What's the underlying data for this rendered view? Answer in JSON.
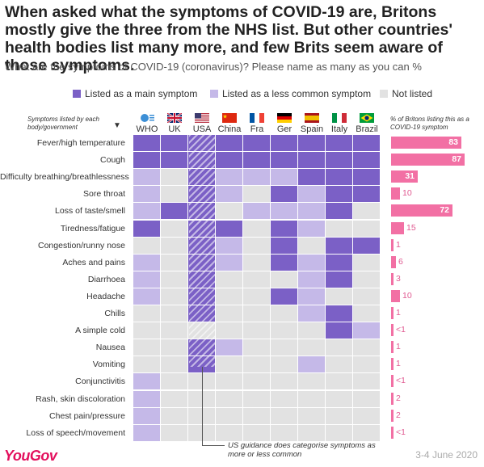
{
  "title": "When asked what the symptoms of COVID-19 are, Britons mostly give the three from the NHS list. But other countries' health bodies list many more, and few Brits seem aware of those symptoms.",
  "subtitle": "What are the symptoms of COVID-19 (coronavirus)? Please name as many as you can %",
  "legend": {
    "main": "Listed as a main symptom",
    "less": "Listed as a less common symptom",
    "none": "Not listed"
  },
  "colors": {
    "main": "#7b60c6",
    "less": "#c5b9e8",
    "none": "#e2e2e2",
    "bar": "#f270a4",
    "brand": "#e3105d"
  },
  "left_header": "Symptoms listed by each body/government",
  "right_header": "% of Britons listing this as a COVID-19 symptom",
  "who_logo_text": "World Health Organization",
  "annotation": "US guidance does categorise symptoms as more or less common",
  "brand": "YouGov",
  "date": "3-4 June 2020",
  "chart_data": {
    "type": "heatmap",
    "countries": [
      "WHO",
      "UK",
      "USA",
      "China",
      "Fra",
      "Ger",
      "Spain",
      "Italy",
      "Brazil"
    ],
    "flags": [
      "who-logo",
      "uk-flag",
      "usa-flag",
      "china-flag",
      "france-flag",
      "germany-flag",
      "spain-flag",
      "italy-flag",
      "brazil-flag"
    ],
    "symptoms": [
      "Fever/high temperature",
      "Cough",
      "Difficulty breathing/breathlessness",
      "Sore throat",
      "Loss of taste/smell",
      "Tiredness/fatigue",
      "Congestion/runny nose",
      "Aches and pains",
      "Diarrhoea",
      "Headache",
      "Chills",
      "A simple cold",
      "Nausea",
      "Vomiting",
      "Conjunctivitis",
      "Rash, skin discoloration",
      "Chest pain/pressure",
      "Loss of speech/movement"
    ],
    "status": [
      [
        "main",
        "main",
        "main",
        "main",
        "main",
        "main",
        "main",
        "main",
        "main"
      ],
      [
        "main",
        "main",
        "main",
        "main",
        "main",
        "main",
        "main",
        "main",
        "main"
      ],
      [
        "less",
        "none",
        "main",
        "less",
        "less",
        "less",
        "main",
        "main",
        "main"
      ],
      [
        "less",
        "none",
        "main",
        "less",
        "none",
        "main",
        "less",
        "main",
        "main"
      ],
      [
        "less",
        "main",
        "main",
        "none",
        "less",
        "less",
        "less",
        "main",
        "none"
      ],
      [
        "main",
        "none",
        "main",
        "main",
        "none",
        "main",
        "less",
        "none",
        "none"
      ],
      [
        "none",
        "none",
        "main",
        "less",
        "none",
        "main",
        "none",
        "main",
        "main"
      ],
      [
        "less",
        "none",
        "main",
        "less",
        "none",
        "main",
        "less",
        "main",
        "none"
      ],
      [
        "less",
        "none",
        "main",
        "none",
        "none",
        "none",
        "less",
        "main",
        "none"
      ],
      [
        "less",
        "none",
        "main",
        "none",
        "none",
        "main",
        "less",
        "none",
        "none"
      ],
      [
        "none",
        "none",
        "main",
        "none",
        "none",
        "none",
        "less",
        "main",
        "none"
      ],
      [
        "none",
        "none",
        "none",
        "none",
        "none",
        "none",
        "none",
        "main",
        "less"
      ],
      [
        "none",
        "none",
        "main",
        "less",
        "none",
        "none",
        "none",
        "none",
        "none"
      ],
      [
        "none",
        "none",
        "main",
        "none",
        "none",
        "none",
        "less",
        "none",
        "none"
      ],
      [
        "less",
        "none",
        "none",
        "none",
        "none",
        "none",
        "none",
        "none",
        "none"
      ],
      [
        "less",
        "none",
        "none",
        "none",
        "none",
        "none",
        "none",
        "none",
        "none"
      ],
      [
        "less",
        "none",
        "none",
        "none",
        "none",
        "none",
        "none",
        "none",
        "none"
      ],
      [
        "less",
        "none",
        "none",
        "none",
        "none",
        "none",
        "none",
        "none",
        "none"
      ]
    ],
    "uk_percent": [
      "83",
      "87",
      "31",
      "10",
      "72",
      "15",
      "1",
      "6",
      "3",
      "10",
      "1",
      "<1",
      "1",
      "1",
      "<1",
      "2",
      "2",
      "<1"
    ],
    "uk_percent_values": [
      83,
      87,
      31,
      10,
      72,
      15,
      1,
      6,
      3,
      10,
      1,
      0.5,
      1,
      1,
      0.5,
      2,
      2,
      0.5
    ],
    "bar_max": 100
  }
}
